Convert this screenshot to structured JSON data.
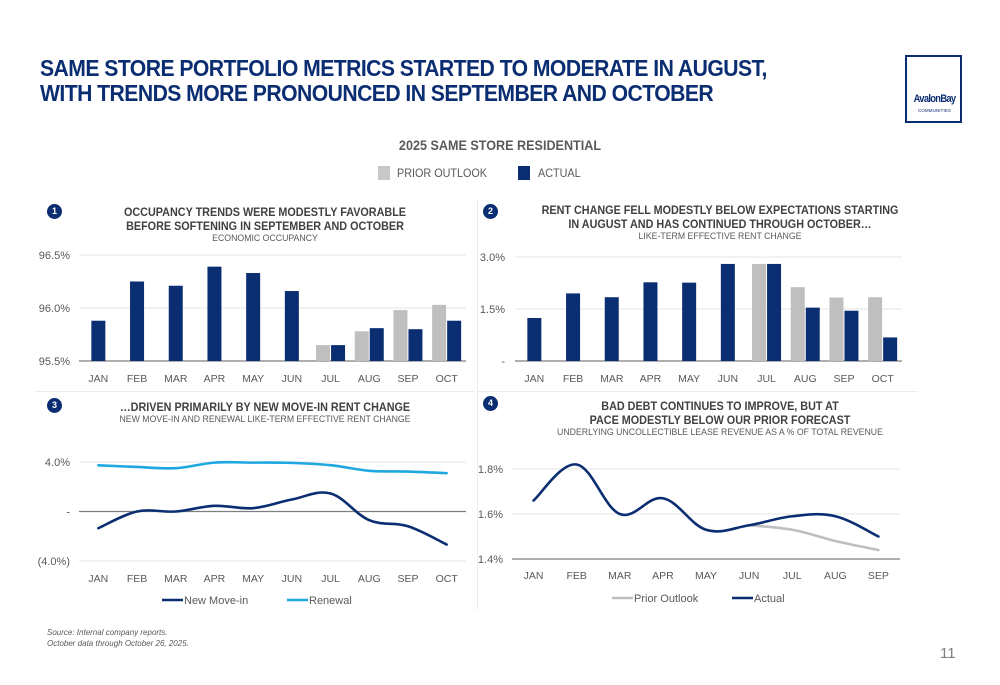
{
  "header": {
    "title_line1": "SAME STORE PORTFOLIO METRICS STARTED TO MODERATE IN AUGUST,",
    "title_line2": "WITH TRENDS MORE PRONOUNCED IN SEPTEMBER AND OCTOBER",
    "logo_name": "AvalonBay",
    "logo_sub": "COMMUNITIES"
  },
  "section_title": "2025 SAME STORE RESIDENTIAL",
  "legend": {
    "prior": "PRIOR OUTLOOK",
    "actual": "ACTUAL"
  },
  "colors": {
    "navy": "#0b2e72",
    "gray": "#bfbfbf",
    "light_blue": "#1ea7e1",
    "grid": "#e6e6e6",
    "axis": "#7f7f7f"
  },
  "panels": [
    {
      "badge": "1",
      "heading_line1": "OCCUPANCY TRENDS WERE MODESTLY FAVORABLE",
      "heading_line2": "BEFORE SOFTENING IN SEPTEMBER AND OCTOBER",
      "subtitle": "ECONOMIC OCCUPANCY"
    },
    {
      "badge": "2",
      "heading_line1": "RENT CHANGE FELL MODESTLY BELOW EXPECTATIONS STARTING",
      "heading_line2": "IN AUGUST AND HAS CONTINUED THROUGH OCTOBER…",
      "subtitle": "LIKE-TERM EFFECTIVE RENT CHANGE"
    },
    {
      "badge": "3",
      "heading_line1": "…DRIVEN PRIMARILY BY NEW MOVE-IN RENT CHANGE",
      "heading_line2": "",
      "subtitle": "NEW MOVE-IN AND RENEWAL LIKE-TERM EFFECTIVE RENT CHANGE"
    },
    {
      "badge": "4",
      "heading_line1": "BAD DEBT CONTINUES TO IMPROVE, BUT AT",
      "heading_line2": "PACE MODESTLY BELOW OUR PRIOR FORECAST",
      "subtitle": "UNDERLYING UNCOLLECTIBLE LEASE REVENUE AS A % OF TOTAL REVENUE"
    }
  ],
  "chart_data": [
    {
      "id": "occupancy",
      "type": "bar",
      "title": "OCCUPANCY TRENDS WERE MODESTLY FAVORABLE BEFORE SOFTENING IN SEPTEMBER AND OCTOBER",
      "subtitle": "ECONOMIC OCCUPANCY",
      "categories": [
        "JAN",
        "FEB",
        "MAR",
        "APR",
        "MAY",
        "JUN",
        "JUL",
        "AUG",
        "SEP",
        "OCT"
      ],
      "series": [
        {
          "name": "Prior Outlook",
          "values": [
            null,
            null,
            null,
            null,
            null,
            null,
            95.65,
            95.78,
            95.98,
            96.03
          ]
        },
        {
          "name": "Actual",
          "values": [
            95.88,
            96.25,
            96.21,
            96.39,
            96.33,
            96.16,
            95.65,
            95.81,
            95.8,
            95.88
          ]
        }
      ],
      "ylim": [
        95.5,
        96.5
      ],
      "yticks": [
        95.5,
        96.0,
        96.5
      ],
      "ytick_labels": [
        "95.5%",
        "96.0%",
        "96.5%"
      ],
      "grid": true,
      "units": "%"
    },
    {
      "id": "rent_change",
      "type": "bar",
      "title": "RENT CHANGE FELL MODESTLY BELOW EXPECTATIONS STARTING IN AUGUST AND HAS CONTINUED THROUGH OCTOBER…",
      "subtitle": "LIKE-TERM EFFECTIVE RENT CHANGE",
      "categories": [
        "JAN",
        "FEB",
        "MAR",
        "APR",
        "MAY",
        "JUN",
        "JUL",
        "AUG",
        "SEP",
        "OCT"
      ],
      "series": [
        {
          "name": "Prior Outlook",
          "values": [
            null,
            null,
            null,
            null,
            null,
            null,
            2.8,
            2.13,
            1.83,
            1.84
          ]
        },
        {
          "name": "Actual",
          "values": [
            1.24,
            1.95,
            1.84,
            2.27,
            2.26,
            2.8,
            2.8,
            1.54,
            1.45,
            0.68
          ]
        }
      ],
      "ylim": [
        0,
        3.0
      ],
      "yticks": [
        0,
        1.5,
        3.0
      ],
      "ytick_labels": [
        "-",
        "1.5%",
        "3.0%"
      ],
      "grid": true,
      "units": "%"
    },
    {
      "id": "move_in_renewal",
      "type": "line",
      "title": "…DRIVEN PRIMARILY BY NEW MOVE-IN RENT CHANGE",
      "subtitle": "NEW MOVE-IN AND RENEWAL LIKE-TERM EFFECTIVE RENT CHANGE",
      "categories": [
        "JAN",
        "FEB",
        "MAR",
        "APR",
        "MAY",
        "JUN",
        "JUL",
        "AUG",
        "SEP",
        "OCT"
      ],
      "series": [
        {
          "name": "New Move-in",
          "color": "#0b2e72",
          "values": [
            -1.35,
            0.0,
            0.0,
            0.46,
            0.27,
            0.97,
            1.45,
            -0.7,
            -1.19,
            -2.67
          ]
        },
        {
          "name": "Renewal",
          "color": "#1ea7e1",
          "values": [
            3.73,
            3.6,
            3.5,
            3.95,
            3.95,
            3.93,
            3.74,
            3.29,
            3.23,
            3.1
          ]
        }
      ],
      "ylim": [
        -4.0,
        4.0
      ],
      "yticks": [
        -4.0,
        0,
        4.0
      ],
      "ytick_labels": [
        "(4.0%)",
        "-",
        "4.0%"
      ],
      "grid": true,
      "legend": "bottom",
      "units": "%"
    },
    {
      "id": "bad_debt",
      "type": "line",
      "title": "BAD DEBT CONTINUES TO IMPROVE, BUT AT PACE MODESTLY BELOW OUR PRIOR FORECAST",
      "subtitle": "UNDERLYING UNCOLLECTIBLE LEASE REVENUE AS A % OF TOTAL REVENUE",
      "categories": [
        "JAN",
        "FEB",
        "MAR",
        "APR",
        "MAY",
        "JUN",
        "JUL",
        "AUG",
        "SEP"
      ],
      "series": [
        {
          "name": "Prior Outlook",
          "color": "#bfbfbf",
          "values": [
            null,
            null,
            null,
            null,
            null,
            1.55,
            1.53,
            1.48,
            1.44
          ]
        },
        {
          "name": "Actual",
          "color": "#0b2e72",
          "values": [
            1.66,
            1.82,
            1.6,
            1.67,
            1.53,
            1.55,
            1.59,
            1.59,
            1.5
          ]
        }
      ],
      "ylim": [
        1.4,
        1.8
      ],
      "yticks": [
        1.4,
        1.6,
        1.8
      ],
      "ytick_labels": [
        "1.4%",
        "1.6%",
        "1.8%"
      ],
      "grid": true,
      "legend": "bottom",
      "units": "%"
    }
  ],
  "footnote": {
    "line1": "Source: Internal company reports.",
    "line2": "October data  through October 26, 2025."
  },
  "page_number": "11"
}
